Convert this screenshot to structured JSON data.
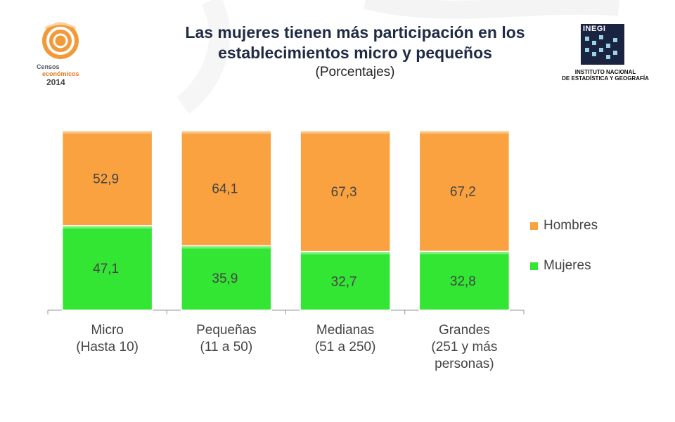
{
  "header": {
    "title_line1": "Las mujeres tienen más participación en los",
    "title_line2": "establecimientos micro y pequeños",
    "subtitle": "(Porcentajes)"
  },
  "logos": {
    "left": {
      "line1": "Censos",
      "line2": "económicos",
      "line3": "2014"
    },
    "right": {
      "acronym": "INEGI",
      "line1": "INSTITUTO NACIONAL",
      "line2": "DE ESTADÍSTICA Y GEOGRAFÍA"
    }
  },
  "colors": {
    "hombres": "#f9a23f",
    "mujeres": "#33e633",
    "title": "#1f2a44",
    "text": "#444444"
  },
  "chart_data": {
    "type": "bar",
    "stacked": true,
    "title": "Las mujeres tienen más participación en los establecimientos micro y pequeños",
    "subtitle": "(Porcentajes)",
    "categories": [
      [
        "Micro",
        "(Hasta 10)"
      ],
      [
        "Pequeñas",
        "(11 a 50)"
      ],
      [
        "Medianas",
        "(51 a 250)"
      ],
      [
        "Grandes",
        "(251 y más",
        "personas)"
      ]
    ],
    "series": [
      {
        "name": "Mujeres",
        "values": [
          47.1,
          35.9,
          32.7,
          32.8
        ],
        "labels": [
          "47,1",
          "35,9",
          "32,7",
          "32,8"
        ],
        "color": "#33e633"
      },
      {
        "name": "Hombres",
        "values": [
          52.9,
          64.1,
          67.3,
          67.2
        ],
        "labels": [
          "52,9",
          "64,1",
          "67,3",
          "67,2"
        ],
        "color": "#f9a23f"
      }
    ],
    "legend": [
      "Hombres",
      "Mujeres"
    ],
    "legend_position": "right",
    "ylim": [
      0,
      100
    ],
    "xlabel": "",
    "ylabel": "",
    "grid": false
  }
}
